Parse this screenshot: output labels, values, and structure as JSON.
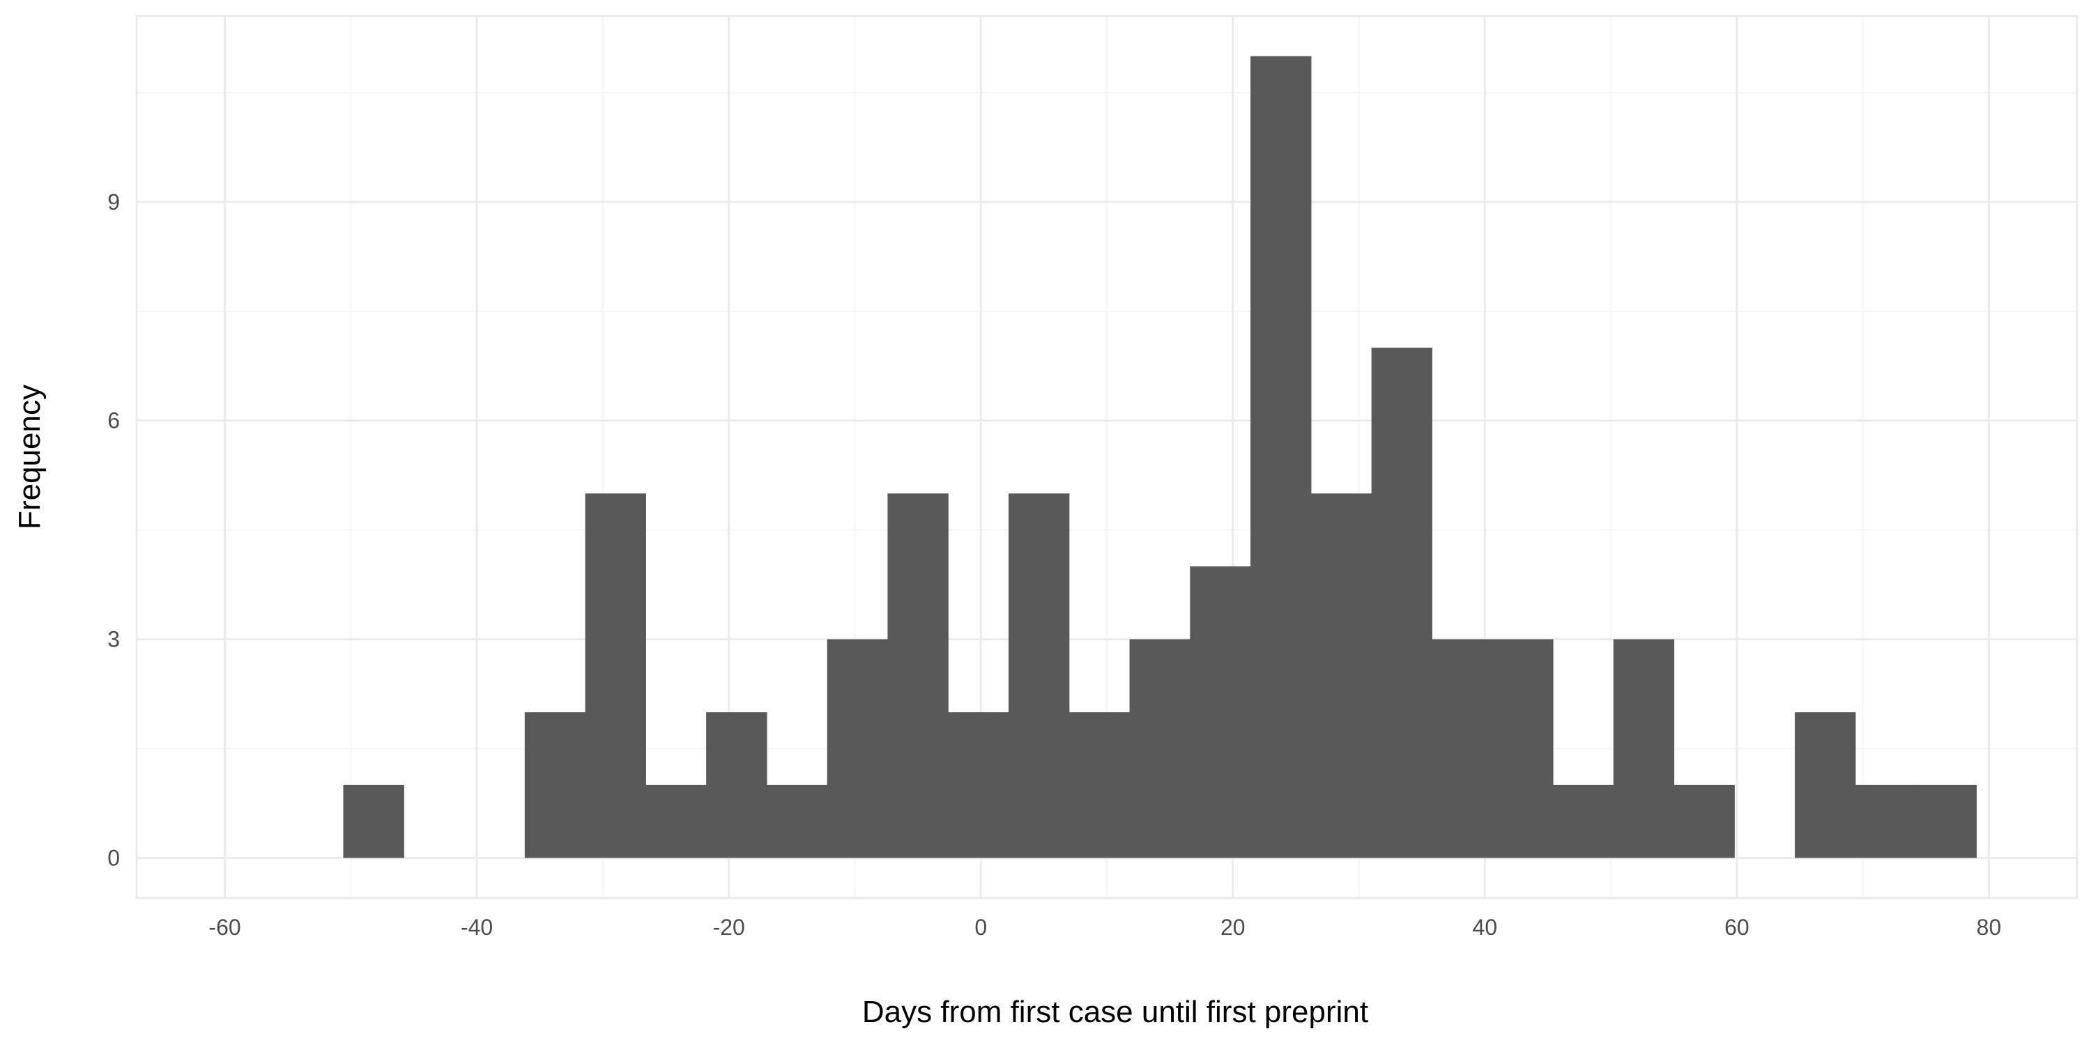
{
  "chart_data": {
    "type": "bar",
    "title": "",
    "xlabel": "Days from first case until first preprint",
    "ylabel": "Frequency",
    "xlim": [
      -67,
      87
    ],
    "ylim": [
      -0.55,
      11.55
    ],
    "xticks": [
      -60,
      -40,
      -20,
      0,
      20,
      40,
      60,
      80
    ],
    "xtick_labels": [
      "-60",
      "-40",
      "-20",
      "0",
      "20",
      "40",
      "60",
      "80"
    ],
    "yticks": [
      0,
      3,
      6,
      9
    ],
    "ytick_labels": [
      "0",
      "3",
      "6",
      "9"
    ],
    "bin_width": 4.8,
    "bin_centers": [
      -48.2,
      -43.4,
      -38.6,
      -33.8,
      -29.0,
      -24.2,
      -19.4,
      -14.6,
      -9.8,
      -5.0,
      -0.2,
      4.6,
      9.4,
      14.2,
      19.0,
      23.8,
      28.6,
      33.4,
      38.2,
      43.0,
      47.8,
      52.6,
      57.4,
      62.2,
      67.0,
      71.8,
      76.6
    ],
    "values": [
      1,
      0,
      0,
      2,
      5,
      1,
      2,
      1,
      3,
      5,
      2,
      5,
      2,
      3,
      4,
      11,
      5,
      7,
      3,
      3,
      1,
      3,
      1,
      0,
      2,
      1,
      1
    ],
    "grid": true,
    "legend": "none",
    "colors": {
      "bar": "#595959",
      "grid_major": "#ebebeb",
      "grid_minor": "#f2f2f2",
      "background": "#ffffff"
    }
  }
}
